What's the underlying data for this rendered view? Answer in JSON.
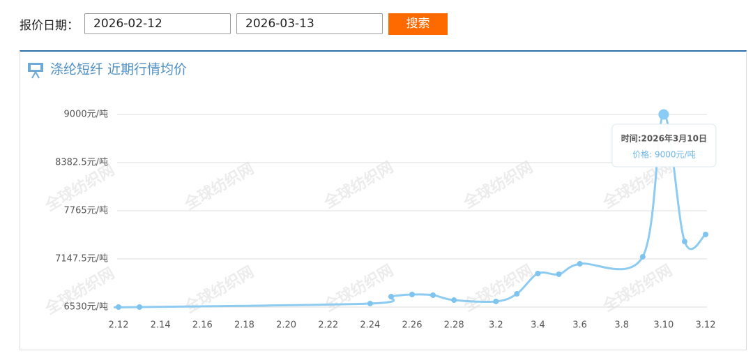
{
  "form": {
    "label": "报价日期：",
    "start_date": "2026-02-12",
    "end_date": "2026-03-13",
    "button": "搜索"
  },
  "chart_data": {
    "type": "line",
    "title": "涤纶短纤 近期行情均价",
    "watermark": "全球纺织网",
    "categories": [
      "2.12",
      null,
      "2.14",
      null,
      "2.16",
      null,
      "2.18",
      null,
      "2.20",
      null,
      "2.22",
      null,
      "2.24",
      null,
      "2.26",
      null,
      "2.28",
      null,
      "3.2",
      null,
      "3.4",
      null,
      "3.6",
      null,
      "3.8",
      null,
      "3.10",
      null,
      "3.12"
    ],
    "series": [
      {
        "name": "价格",
        "color": "#8ecbf0",
        "values": [
          6530,
          6530,
          null,
          null,
          null,
          null,
          null,
          null,
          null,
          null,
          null,
          null,
          6575,
          6664,
          6691,
          6682,
          6619,
          null,
          6602,
          6700,
          6960,
          6951,
          7085,
          null,
          null,
          7174,
          9000,
          7371,
          7461
        ]
      }
    ],
    "connect_nulls": true,
    "smooth": true,
    "ylim": [
      6530,
      9000
    ],
    "yticks": [
      {
        "value": 6530,
        "label": "6530元/吨"
      },
      {
        "value": 7147.5,
        "label": "7147.5元/吨"
      },
      {
        "value": 7765,
        "label": "7765元/吨"
      },
      {
        "value": 8382.5,
        "label": "8382.5元/吨"
      },
      {
        "value": 9000,
        "label": "9000元/吨"
      }
    ],
    "grid": true,
    "tooltip": {
      "title": "时间:2026年3月10日",
      "text": "价格: 9000元/吨"
    }
  }
}
